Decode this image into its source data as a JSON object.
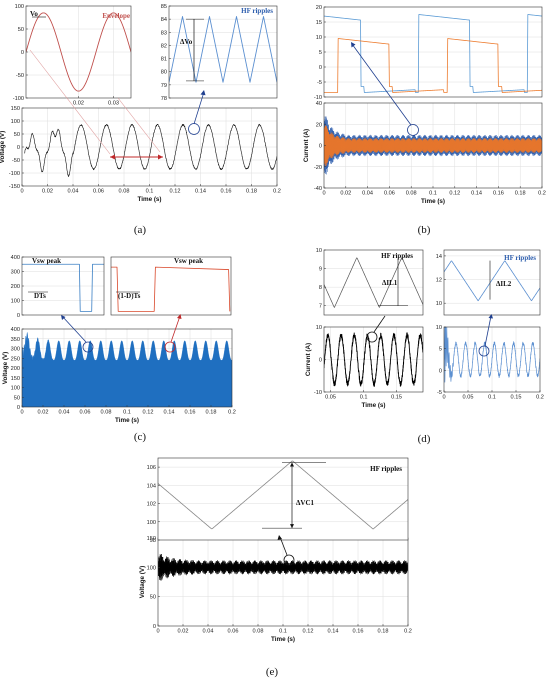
{
  "panels": [
    {
      "id": "a",
      "label": "(a)",
      "main": {
        "type": "line",
        "xlabel": "Time (s)",
        "ylabel": "Voltage (V)",
        "xlim": [
          0,
          0.2
        ],
        "ylim": [
          -150,
          150
        ],
        "xticks": [
          "0",
          "0.02",
          "0.04",
          "0.06",
          "0.08",
          "0.1",
          "0.12",
          "0.14",
          "0.16",
          "0.18",
          "0.2"
        ],
        "yticks": [
          "-150",
          "-100",
          "-50",
          "0",
          "50",
          "100",
          "150"
        ],
        "series": [
          {
            "color": "#111111",
            "frequency_hz": 50,
            "steady_amplitude": 85,
            "startup_duration_s": 0.04
          }
        ]
      },
      "inset_left": {
        "type": "line",
        "xlim": [
          0.005,
          0.035
        ],
        "ylim": [
          -100,
          100
        ],
        "xticks": [
          "0.02",
          "0.03"
        ],
        "yticks": [
          "-100",
          "-50",
          "0",
          "50",
          "100"
        ],
        "series": [
          {
            "name": "Envelope",
            "color": "#c0504d",
            "amplitude": 85,
            "frequency_hz": 50
          }
        ],
        "text_vo": "Vo",
        "text_envelope": "Envelope"
      },
      "inset_right": {
        "type": "line",
        "xlim": [
          0,
          1
        ],
        "ylim": [
          78,
          85
        ],
        "yticks": [
          "78",
          "79",
          "80",
          "81",
          "82",
          "83",
          "84",
          "85"
        ],
        "series": [
          {
            "name": "HF ripples",
            "color": "#5b8fd0",
            "min": 79.2,
            "max": 84.2,
            "cycles": 4
          }
        ],
        "text_title": "HF ripples",
        "text_dv": "ΔVo"
      }
    },
    {
      "id": "b",
      "label": "(b)",
      "main": {
        "type": "line",
        "xlabel": "Time (s)",
        "ylabel": "Current (A)",
        "xlim": [
          0,
          0.2
        ],
        "ylim": [
          -40,
          40
        ],
        "xticks": [
          "0",
          "0.02",
          "0.04",
          "0.06",
          "0.08",
          "0.1",
          "0.12",
          "0.14",
          "0.16",
          "0.18",
          "0.2"
        ],
        "yticks": [
          "-40",
          "-20",
          "0",
          "20",
          "40"
        ],
        "series": [
          {
            "color": "#2f5fae",
            "steady_amplitude": 10
          },
          {
            "color": "#e8762b",
            "steady_amplitude": 7
          }
        ]
      },
      "inset": {
        "type": "line",
        "xlim": [
          0,
          1
        ],
        "ylim": [
          -10,
          20
        ],
        "yticks": [
          "-10",
          "-5",
          "0",
          "5",
          "10",
          "15",
          "20"
        ],
        "series": [
          {
            "color": "#5b9bd5",
            "high": 17.5,
            "low": -8.5
          },
          {
            "color": "#ed7d31",
            "high": 9.5,
            "low": -8.5
          }
        ]
      }
    },
    {
      "id": "c",
      "label": "(c)",
      "main": {
        "type": "area",
        "xlabel": "Time (s)",
        "ylabel": "Voltage (V)",
        "xlim": [
          0,
          0.2
        ],
        "ylim": [
          0,
          400
        ],
        "xticks": [
          "0",
          "0.02",
          "0.04",
          "0.06",
          "0.08",
          "0.1",
          "0.12",
          "0.14",
          "0.16",
          "0.18",
          "0.2"
        ],
        "yticks": [
          "0",
          "50",
          "100",
          "150",
          "200",
          "250",
          "300",
          "350",
          "400"
        ],
        "series": [
          {
            "color": "#1f6fc0",
            "floor": 240,
            "peak": 340,
            "frequency_hz": 100
          }
        ]
      },
      "inset_left": {
        "type": "line",
        "xlim": [
          0,
          1
        ],
        "ylim": [
          0,
          400
        ],
        "yticks": [
          "0",
          "100",
          "200",
          "300",
          "400"
        ],
        "series": [
          {
            "color": "#3a7fc4",
            "high": 350,
            "low": 25,
            "duty": 0.7
          }
        ],
        "text_peak": "Vsw peak",
        "text_duty": "DTs"
      },
      "inset_right": {
        "type": "line",
        "xlim": [
          0,
          1
        ],
        "ylim": [
          0,
          400
        ],
        "series": [
          {
            "color": "#d9482b",
            "high": 330,
            "low": 25,
            "duty": 0.3
          }
        ],
        "text_peak": "Vsw peak",
        "text_duty": "(1-D)Ts"
      }
    },
    {
      "id": "d",
      "label": "(d)",
      "left": {
        "type": "line",
        "xlabel": "Time (s)",
        "ylabel": "Current (A)",
        "xlim": [
          0.04,
          0.19
        ],
        "ylim": [
          -10,
          10
        ],
        "xticks": [
          "0.05",
          "0.1",
          "0.15"
        ],
        "yticks": [
          "-10",
          "0",
          "10"
        ],
        "series": [
          {
            "color": "#000000",
            "amplitude": 7.5,
            "frequency_hz": 50
          }
        ],
        "inset": {
          "type": "line",
          "ylim": [
            6.5,
            10
          ],
          "yticks": [
            "7",
            "8",
            "9",
            "10"
          ],
          "series": [
            {
              "color": "#555555",
              "min": 6.9,
              "max": 9.6
            }
          ],
          "text_title": "HF ripples",
          "text_di": "ΔIL1"
        }
      },
      "right": {
        "type": "line",
        "xlim": [
          0,
          0.2
        ],
        "ylim": [
          -5,
          10
        ],
        "xticks": [
          "0",
          "0.05",
          "0.1",
          "0.15",
          "0.2"
        ],
        "yticks": [
          "-5",
          "0",
          "5",
          "10"
        ],
        "series": [
          {
            "color": "#5b8fd0",
            "mean": 2.5,
            "amplitude": 3.8,
            "frequency_hz": 50
          }
        ],
        "inset": {
          "type": "line",
          "ylim": [
            9,
            14.5
          ],
          "yticks": [
            "10",
            "12",
            "14"
          ],
          "series": [
            {
              "color": "#5b8fd0",
              "min": 10.2,
              "max": 13.6
            }
          ],
          "text_title": "HF ripples",
          "text_di": "ΔIL2"
        }
      }
    },
    {
      "id": "e",
      "label": "(e)",
      "main": {
        "type": "line",
        "xlabel": "Time (s)",
        "ylabel": "Voltage (V)",
        "xlim": [
          0,
          0.2
        ],
        "ylim": [
          0,
          150
        ],
        "xticks": [
          "0",
          "0.02",
          "0.04",
          "0.06",
          "0.08",
          "0.1",
          "0.12",
          "0.14",
          "0.16",
          "0.18",
          "0.2"
        ],
        "yticks": [
          "0",
          "50",
          "100",
          "150"
        ],
        "series": [
          {
            "color": "#000000",
            "mean": 100,
            "ripple": 12
          }
        ]
      },
      "inset": {
        "type": "line",
        "xlim": [
          0,
          1
        ],
        "ylim": [
          98,
          107
        ],
        "yticks": [
          "98",
          "100",
          "102",
          "104",
          "106"
        ],
        "series": [
          {
            "color": "#888888",
            "min": 99.2,
            "max": 106.7
          }
        ],
        "text_title": "HF ripples",
        "text_dv": "ΔVC1"
      }
    }
  ],
  "chart_data": [
    {
      "type": "line",
      "panel": "a",
      "xlabel": "Time (s)",
      "ylabel": "Voltage (V)",
      "xlim": [
        0,
        0.2
      ],
      "ylim": [
        -150,
        150
      ],
      "series": [
        {
          "color": "#111111",
          "frequency_hz": 50,
          "steady_amplitude": 85
        }
      ]
    },
    {
      "type": "line",
      "panel": "a-inset-right",
      "ylim": [
        78,
        85
      ],
      "series": [
        {
          "name": "HF ripples",
          "min": 79.2,
          "max": 84.2
        }
      ]
    },
    {
      "type": "line",
      "panel": "b",
      "xlabel": "Time (s)",
      "ylabel": "Current (A)",
      "xlim": [
        0,
        0.2
      ],
      "ylim": [
        -40,
        40
      ],
      "series": [
        {
          "color": "#2f5fae",
          "steady_amplitude": 10
        },
        {
          "color": "#e8762b",
          "steady_amplitude": 7
        }
      ]
    },
    {
      "type": "area",
      "panel": "c",
      "xlabel": "Time (s)",
      "ylabel": "Voltage (V)",
      "xlim": [
        0,
        0.2
      ],
      "ylim": [
        0,
        400
      ],
      "series": [
        {
          "color": "#1f6fc0",
          "floor": 240,
          "peak": 340
        }
      ]
    },
    {
      "type": "line",
      "panel": "d-left",
      "xlabel": "Time (s)",
      "ylabel": "Current (A)",
      "xlim": [
        0.04,
        0.19
      ],
      "ylim": [
        -10,
        10
      ],
      "series": [
        {
          "amplitude": 7.5
        }
      ]
    },
    {
      "type": "line",
      "panel": "d-right",
      "xlim": [
        0,
        0.2
      ],
      "ylim": [
        -5,
        10
      ],
      "series": [
        {
          "mean": 2.5,
          "amplitude": 3.8
        }
      ]
    },
    {
      "type": "line",
      "panel": "e",
      "xlabel": "Time (s)",
      "ylabel": "Voltage (V)",
      "xlim": [
        0,
        0.2
      ],
      "ylim": [
        0,
        150
      ],
      "series": [
        {
          "mean": 100,
          "ripple": 12
        }
      ]
    },
    {
      "type": "line",
      "panel": "e-inset",
      "ylim": [
        98,
        107
      ],
      "series": [
        {
          "name": "HF ripples",
          "min": 99.2,
          "max": 106.7
        }
      ]
    }
  ]
}
